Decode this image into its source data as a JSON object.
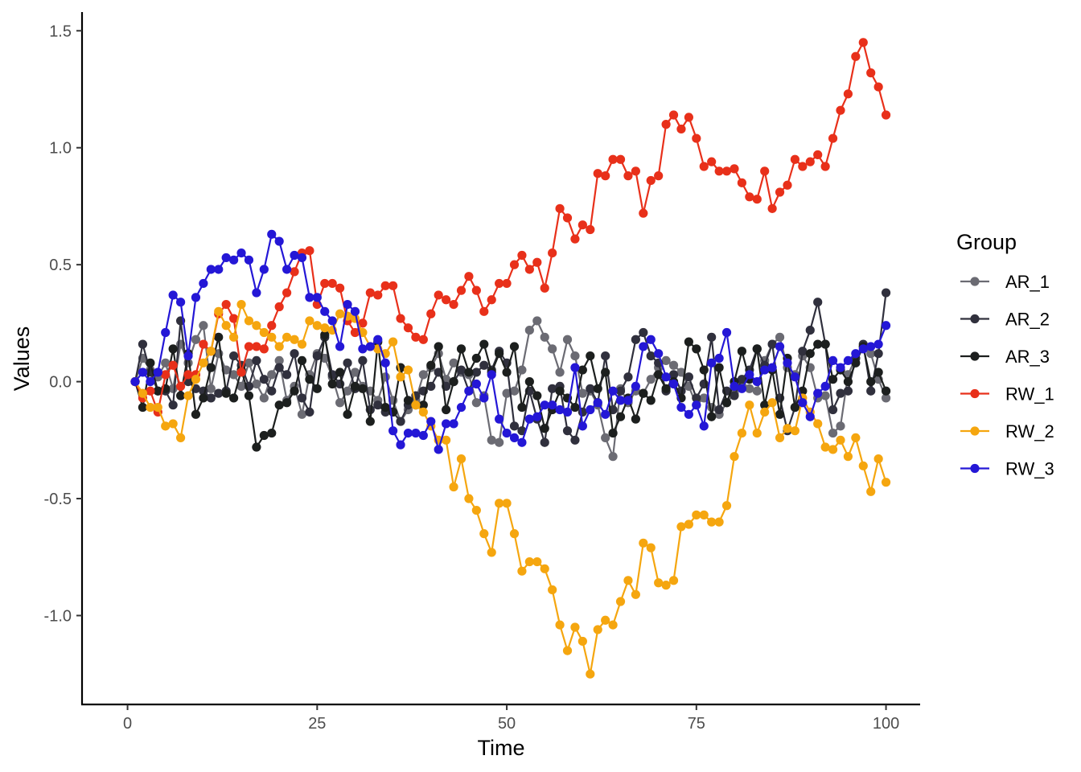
{
  "chart_data": {
    "type": "line",
    "xlabel": "Time",
    "ylabel": "Values",
    "xlim": [
      -6,
      104.5
    ],
    "ylim": [
      -1.38,
      1.58
    ],
    "x_ticks": [
      0,
      25,
      50,
      75,
      100
    ],
    "x_tick_labels": [
      "0",
      "25",
      "50",
      "75",
      "100"
    ],
    "y_ticks": [
      1.5,
      1.0,
      0.5,
      0.0,
      -0.5,
      -1.0
    ],
    "y_tick_labels": [
      "1.5",
      "1.0",
      "0.5",
      "0.0",
      "-0.5",
      "-1.0"
    ],
    "grid": false,
    "legend": {
      "title": "Group",
      "position": "right"
    },
    "x": [
      1,
      2,
      3,
      4,
      5,
      6,
      7,
      8,
      9,
      10,
      11,
      12,
      13,
      14,
      15,
      16,
      17,
      18,
      19,
      20,
      21,
      22,
      23,
      24,
      25,
      26,
      27,
      28,
      29,
      30,
      31,
      32,
      33,
      34,
      35,
      36,
      37,
      38,
      39,
      40,
      41,
      42,
      43,
      44,
      45,
      46,
      47,
      48,
      49,
      50,
      51,
      52,
      53,
      54,
      55,
      56,
      57,
      58,
      59,
      60,
      61,
      62,
      63,
      64,
      65,
      66,
      67,
      68,
      69,
      70,
      71,
      72,
      73,
      74,
      75,
      76,
      77,
      78,
      79,
      80,
      81,
      82,
      83,
      84,
      85,
      86,
      87,
      88,
      89,
      90,
      91,
      92,
      93,
      94,
      95,
      96,
      97,
      98,
      99,
      100
    ],
    "series": [
      {
        "name": "AR_1",
        "color": "#6b6b73",
        "values": [
          0.0,
          0.1,
          0.05,
          0.02,
          0.08,
          -0.03,
          0.16,
          0.08,
          0.18,
          0.24,
          -0.03,
          0.12,
          0.05,
          0.03,
          -0.02,
          0.08,
          -0.01,
          -0.07,
          0.03,
          0.09,
          -0.08,
          -0.02,
          -0.14,
          0.03,
          0.12,
          0.1,
          0.02,
          -0.09,
          -0.04,
          0.04,
          -0.02,
          -0.04,
          -0.08,
          0.02,
          -0.08,
          -0.17,
          -0.12,
          -0.08,
          0.03,
          0.06,
          0.12,
          0.01,
          0.08,
          0.04,
          0.03,
          -0.09,
          -0.06,
          -0.25,
          -0.26,
          -0.05,
          -0.04,
          0.05,
          0.22,
          0.26,
          0.19,
          0.14,
          0.04,
          0.18,
          0.11,
          -0.05,
          -0.04,
          -0.1,
          -0.24,
          -0.32,
          -0.03,
          -0.09,
          -0.04,
          -0.05,
          0.01,
          0.06,
          0.09,
          0.07,
          0.04,
          -0.02,
          -0.1,
          -0.07,
          -0.11,
          -0.14,
          -0.09,
          -0.05,
          0.0,
          -0.03,
          -0.04,
          0.09,
          0.16,
          0.19,
          0.06,
          0.03,
          0.11,
          0.06,
          -0.07,
          -0.06,
          -0.22,
          -0.19,
          0.03,
          0.1,
          0.15,
          0.12,
          0.01,
          -0.07
        ]
      },
      {
        "name": "AR_2",
        "color": "#30303d",
        "values": [
          0.0,
          0.16,
          0.04,
          -0.04,
          -0.04,
          -0.1,
          0.26,
          0.0,
          -0.03,
          -0.04,
          -0.07,
          -0.05,
          -0.04,
          0.11,
          0.07,
          -0.02,
          0.09,
          0.01,
          -0.04,
          0.06,
          0.03,
          0.12,
          -0.07,
          -0.13,
          0.11,
          0.19,
          0.03,
          -0.01,
          0.08,
          -0.03,
          0.09,
          -0.12,
          -0.1,
          -0.13,
          -0.13,
          -0.17,
          -0.1,
          -0.06,
          -0.04,
          -0.02,
          0.04,
          -0.02,
          0.0,
          0.05,
          -0.04,
          0.04,
          0.07,
          0.05,
          0.13,
          0.08,
          -0.19,
          -0.21,
          -0.04,
          -0.16,
          -0.26,
          -0.03,
          -0.02,
          -0.21,
          -0.25,
          -0.13,
          -0.03,
          -0.09,
          0.11,
          -0.12,
          -0.04,
          0.02,
          0.18,
          0.21,
          0.11,
          0.08,
          -0.04,
          0.03,
          -0.04,
          0.02,
          -0.07,
          -0.01,
          0.19,
          -0.12,
          -0.04,
          -0.06,
          0.01,
          0.05,
          0.14,
          0.07,
          0.16,
          -0.07,
          -0.21,
          -0.11,
          0.13,
          0.22,
          0.34,
          0.16,
          -0.12,
          -0.05,
          -0.04,
          0.1,
          0.16,
          -0.04,
          0.12,
          0.38
        ]
      },
      {
        "name": "AR_3",
        "color": "#1c1f1e",
        "values": [
          0.0,
          -0.11,
          0.08,
          -0.04,
          -0.03,
          0.14,
          -0.06,
          0.12,
          -0.14,
          -0.07,
          0.06,
          0.19,
          -0.05,
          -0.07,
          0.05,
          -0.06,
          -0.28,
          -0.23,
          -0.22,
          -0.1,
          -0.09,
          -0.04,
          0.09,
          0.01,
          -0.03,
          0.2,
          -0.01,
          0.04,
          -0.14,
          -0.02,
          -0.03,
          -0.17,
          0.17,
          -0.11,
          -0.13,
          0.06,
          -0.08,
          -0.1,
          -0.1,
          0.07,
          0.15,
          -0.12,
          0.0,
          0.14,
          0.04,
          0.1,
          0.16,
          0.04,
          0.12,
          0.04,
          0.15,
          -0.11,
          0.0,
          -0.06,
          -0.2,
          -0.12,
          -0.04,
          -0.07,
          -0.11,
          0.05,
          0.11,
          -0.03,
          0.04,
          -0.22,
          -0.15,
          -0.07,
          -0.16,
          -0.05,
          -0.08,
          0.03,
          -0.03,
          0.0,
          -0.07,
          0.17,
          0.14,
          0.05,
          -0.15,
          0.06,
          -0.09,
          0.0,
          0.13,
          0.01,
          0.14,
          -0.1,
          0.05,
          -0.14,
          0.1,
          -0.11,
          -0.04,
          0.12,
          0.16,
          0.16,
          0.01,
          0.05,
          0.0,
          0.08,
          0.15,
          0.0,
          0.04,
          -0.04
        ]
      },
      {
        "name": "RW_1",
        "color": "#e8301a",
        "values": [
          0.0,
          -0.07,
          -0.04,
          -0.13,
          0.03,
          0.07,
          -0.02,
          0.03,
          0.03,
          0.16,
          0.13,
          0.29,
          0.33,
          0.27,
          0.04,
          0.15,
          0.15,
          0.14,
          0.24,
          0.32,
          0.38,
          0.47,
          0.55,
          0.56,
          0.33,
          0.42,
          0.42,
          0.4,
          0.26,
          0.21,
          0.25,
          0.38,
          0.37,
          0.41,
          0.41,
          0.27,
          0.23,
          0.19,
          0.18,
          0.29,
          0.37,
          0.35,
          0.33,
          0.39,
          0.45,
          0.39,
          0.3,
          0.35,
          0.42,
          0.42,
          0.5,
          0.54,
          0.48,
          0.51,
          0.4,
          0.55,
          0.74,
          0.7,
          0.61,
          0.67,
          0.65,
          0.89,
          0.88,
          0.95,
          0.95,
          0.88,
          0.9,
          0.72,
          0.86,
          0.88,
          1.1,
          1.14,
          1.08,
          1.13,
          1.04,
          0.92,
          0.94,
          0.9,
          0.9,
          0.91,
          0.85,
          0.79,
          0.78,
          0.9,
          0.74,
          0.81,
          0.84,
          0.95,
          0.92,
          0.94,
          0.97,
          0.92,
          1.04,
          1.16,
          1.23,
          1.39,
          1.45,
          1.32,
          1.26,
          1.14
        ]
      },
      {
        "name": "RW_2",
        "color": "#f5a60f",
        "values": [
          0.0,
          -0.05,
          -0.11,
          -0.11,
          -0.19,
          -0.18,
          -0.24,
          -0.06,
          0.01,
          0.08,
          0.13,
          0.3,
          0.24,
          0.19,
          0.33,
          0.26,
          0.24,
          0.21,
          0.19,
          0.15,
          0.19,
          0.18,
          0.16,
          0.26,
          0.24,
          0.23,
          0.22,
          0.29,
          0.28,
          0.27,
          0.21,
          0.15,
          0.14,
          0.12,
          0.17,
          0.02,
          0.05,
          -0.1,
          -0.13,
          -0.19,
          -0.25,
          -0.25,
          -0.45,
          -0.33,
          -0.5,
          -0.55,
          -0.65,
          -0.73,
          -0.52,
          -0.52,
          -0.65,
          -0.81,
          -0.77,
          -0.77,
          -0.8,
          -0.89,
          -1.04,
          -1.15,
          -1.05,
          -1.11,
          -1.25,
          -1.06,
          -1.02,
          -1.04,
          -0.94,
          -0.85,
          -0.91,
          -0.69,
          -0.71,
          -0.86,
          -0.87,
          -0.85,
          -0.62,
          -0.61,
          -0.57,
          -0.57,
          -0.6,
          -0.6,
          -0.53,
          -0.32,
          -0.22,
          -0.1,
          -0.22,
          -0.13,
          -0.09,
          -0.24,
          -0.2,
          -0.21,
          -0.07,
          -0.13,
          -0.18,
          -0.28,
          -0.29,
          -0.25,
          -0.32,
          -0.24,
          -0.36,
          -0.47,
          -0.33,
          -0.43
        ]
      },
      {
        "name": "RW_3",
        "color": "#2417d6",
        "values": [
          0.0,
          0.04,
          0.0,
          0.04,
          0.21,
          0.37,
          0.34,
          0.11,
          0.36,
          0.42,
          0.48,
          0.48,
          0.53,
          0.52,
          0.55,
          0.52,
          0.38,
          0.48,
          0.63,
          0.6,
          0.48,
          0.54,
          0.53,
          0.36,
          0.36,
          0.3,
          0.26,
          0.15,
          0.33,
          0.3,
          0.14,
          0.15,
          0.18,
          0.08,
          -0.21,
          -0.27,
          -0.22,
          -0.22,
          -0.23,
          -0.17,
          -0.29,
          -0.18,
          -0.18,
          -0.11,
          -0.04,
          -0.01,
          -0.07,
          0.03,
          -0.16,
          -0.22,
          -0.24,
          -0.26,
          -0.16,
          -0.15,
          -0.1,
          -0.1,
          -0.12,
          -0.13,
          0.06,
          -0.19,
          -0.12,
          -0.09,
          -0.14,
          -0.04,
          -0.08,
          -0.08,
          -0.02,
          0.15,
          0.18,
          0.12,
          0.02,
          -0.01,
          -0.11,
          -0.14,
          -0.1,
          -0.19,
          0.08,
          0.1,
          0.21,
          -0.02,
          -0.03,
          0.03,
          0.0,
          0.05,
          0.06,
          0.15,
          0.08,
          0.02,
          -0.09,
          -0.15,
          -0.05,
          -0.02,
          0.09,
          0.06,
          0.09,
          0.12,
          0.14,
          0.15,
          0.16,
          0.24
        ]
      }
    ]
  }
}
